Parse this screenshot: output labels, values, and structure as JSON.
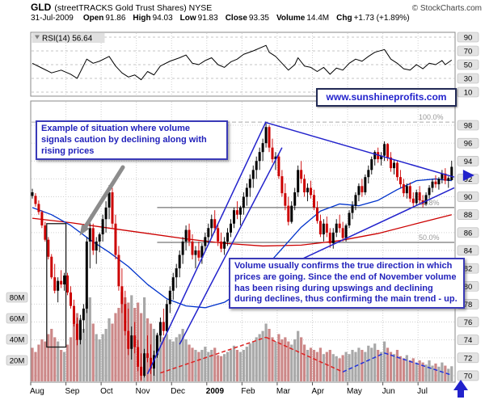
{
  "page": {
    "title_symbol": "GLD",
    "title_rest": "(streetTRACKS Gold Trust Shares) NYSE",
    "copyright": "© StockCharts.com",
    "date": "31-Jul-2009"
  },
  "quote": {
    "open_label": "Open",
    "open": "91.86",
    "high_label": "High",
    "high": "94.03",
    "low_label": "Low",
    "low": "91.83",
    "close_label": "Close",
    "close": "93.35",
    "volume_label": "Volume",
    "volume": "14.4M",
    "chg_label": "Chg",
    "chg": "+1.73 (+1.89%)"
  },
  "annotations": {
    "note1": "Example of situation where volume signals caution by declining along with rising prices",
    "note2": "Volume usually confirms the true direction in which prices are going. Since the end of November volume has been rising during upswings and declining during declines, thus confirming the main trend - up.",
    "watermark": "www.sunshineprofits.com"
  },
  "colors": {
    "annotation_blue": "#2222bb",
    "trend_blue": "#2222cc",
    "ma_red": "#cc0000",
    "ma_blue": "#0033cc",
    "candle_up": "#000000",
    "candle_down": "#cc0000",
    "vol_up": "#a8a8a8",
    "vol_down": "#cc8888",
    "grid": "#d0d0d0",
    "fib": "#999999",
    "vol_trend_red": "#dd2222",
    "vol_trend_blue": "#2233dd"
  },
  "chart_data": {
    "type": "candlestick",
    "title": "GLD daily candlesticks with RSI(14), volume overlay, Fibonacci retracements and trendlines",
    "x_axis": {
      "months": [
        "Aug",
        "Sep",
        "Oct",
        "Nov",
        "Dec",
        "2009",
        "Feb",
        "Mar",
        "Apr",
        "May",
        "Jun",
        "Jul"
      ],
      "bars_per_month": 11
    },
    "price_axis": {
      "min": 70,
      "max": 98,
      "step": 2
    },
    "volume_axis": {
      "ticks_m": [
        80,
        60,
        40,
        20
      ],
      "unit": "M"
    },
    "rsi_panel": {
      "label": "RSI(14) 56.64",
      "ticks": [
        90,
        70,
        50,
        30,
        10
      ],
      "last": 56.64
    },
    "fib_levels": [
      {
        "label": "100.0%",
        "price": 98.35,
        "dashed": true,
        "from_bar": 0
      },
      {
        "label": "61.8%",
        "price": 88.8,
        "dashed": false,
        "from_bar": 39
      },
      {
        "label": "50.0%",
        "price": 84.9,
        "dashed": false,
        "from_bar": 39
      }
    ],
    "candles_ohlc": [
      [
        90.5,
        90.9,
        89.8,
        90.1
      ],
      [
        90.1,
        90.4,
        88.9,
        89.2
      ],
      [
        89.2,
        89.6,
        88.0,
        88.3
      ],
      [
        88.3,
        88.5,
        86.5,
        86.8
      ],
      [
        86.8,
        87.2,
        85.0,
        85.2
      ],
      [
        85.2,
        85.5,
        83.0,
        83.3
      ],
      [
        83.3,
        83.6,
        80.8,
        81.0
      ],
      [
        81.0,
        82.5,
        79.2,
        79.5
      ],
      [
        79.5,
        81.0,
        78.2,
        80.6
      ],
      [
        80.6,
        81.8,
        79.8,
        80.2
      ],
      [
        80.2,
        81.5,
        79.5,
        81.2
      ],
      [
        81.2,
        81.5,
        79.0,
        79.3
      ],
      [
        79.3,
        80.0,
        77.5,
        77.8
      ],
      [
        77.8,
        78.5,
        75.5,
        75.8
      ],
      [
        75.8,
        76.5,
        73.4,
        74.0
      ],
      [
        74.0,
        76.8,
        73.5,
        76.2
      ],
      [
        76.2,
        78.0,
        74.8,
        77.5
      ],
      [
        77.5,
        85.5,
        77.0,
        85.0
      ],
      [
        85.0,
        87.2,
        82.0,
        86.5
      ],
      [
        86.5,
        87.0,
        83.5,
        84.0
      ],
      [
        84.0,
        85.5,
        82.5,
        85.0
      ],
      [
        85.0,
        86.0,
        83.8,
        85.8
      ],
      [
        85.8,
        88.0,
        85.0,
        87.5
      ],
      [
        87.5,
        89.5,
        86.0,
        88.8
      ],
      [
        88.8,
        91.3,
        87.5,
        90.5
      ],
      [
        90.5,
        91.0,
        86.5,
        87.0
      ],
      [
        87.0,
        88.0,
        83.0,
        83.5
      ],
      [
        83.5,
        84.5,
        79.5,
        80.0
      ],
      [
        80.0,
        82.0,
        77.0,
        78.0
      ],
      [
        78.0,
        79.5,
        74.5,
        75.0
      ],
      [
        75.0,
        77.5,
        72.3,
        73.0
      ],
      [
        73.0,
        75.5,
        71.8,
        74.5
      ],
      [
        74.5,
        76.0,
        72.5,
        73.2
      ],
      [
        73.2,
        74.0,
        70.5,
        71.0
      ],
      [
        71.0,
        72.5,
        69.5,
        70.0
      ],
      [
        70.0,
        73.0,
        69.8,
        72.5
      ],
      [
        72.5,
        74.5,
        71.5,
        72.0
      ],
      [
        72.0,
        73.5,
        70.2,
        70.8
      ],
      [
        70.8,
        72.8,
        70.0,
        72.3
      ],
      [
        72.3,
        74.8,
        72.0,
        74.5
      ],
      [
        74.5,
        76.5,
        73.8,
        76.0
      ],
      [
        76.0,
        77.5,
        74.5,
        75.0
      ],
      [
        75.0,
        78.5,
        74.8,
        78.0
      ],
      [
        78.0,
        80.0,
        77.0,
        79.5
      ],
      [
        79.5,
        81.5,
        78.5,
        81.0
      ],
      [
        81.0,
        82.5,
        79.8,
        82.0
      ],
      [
        82.0,
        84.0,
        81.0,
        83.5
      ],
      [
        83.5,
        85.5,
        82.5,
        85.0
      ],
      [
        85.0,
        86.8,
        84.0,
        86.3
      ],
      [
        86.3,
        87.0,
        84.5,
        85.0
      ],
      [
        85.0,
        85.8,
        83.0,
        83.5
      ],
      [
        83.5,
        84.5,
        82.0,
        84.0
      ],
      [
        84.0,
        85.0,
        82.8,
        83.2
      ],
      [
        83.2,
        84.8,
        82.5,
        84.5
      ],
      [
        84.5,
        86.0,
        84.0,
        85.5
      ],
      [
        85.5,
        87.0,
        84.8,
        86.5
      ],
      [
        86.5,
        88.0,
        85.5,
        87.5
      ],
      [
        87.5,
        88.5,
        86.0,
        86.5
      ],
      [
        86.5,
        87.0,
        84.5,
        85.0
      ],
      [
        85.0,
        86.0,
        83.8,
        84.2
      ],
      [
        84.2,
        85.5,
        83.5,
        85.0
      ],
      [
        85.0,
        86.5,
        84.5,
        86.0
      ],
      [
        86.0,
        87.5,
        85.5,
        87.0
      ],
      [
        87.0,
        88.8,
        86.5,
        88.5
      ],
      [
        88.5,
        89.5,
        87.5,
        88.0
      ],
      [
        88.0,
        89.0,
        86.8,
        88.8
      ],
      [
        88.8,
        90.5,
        88.0,
        90.0
      ],
      [
        90.0,
        91.5,
        89.0,
        91.0
      ],
      [
        91.0,
        92.5,
        90.0,
        92.0
      ],
      [
        92.0,
        93.5,
        91.0,
        93.0
      ],
      [
        93.0,
        94.5,
        92.0,
        94.0
      ],
      [
        94.0,
        95.5,
        93.0,
        95.0
      ],
      [
        95.0,
        96.5,
        94.0,
        96.0
      ],
      [
        96.0,
        98.2,
        95.5,
        97.8
      ],
      [
        97.8,
        98.0,
        95.0,
        95.5
      ],
      [
        95.5,
        96.5,
        93.8,
        94.2
      ],
      [
        94.2,
        95.0,
        93.0,
        94.5
      ],
      [
        94.5,
        94.8,
        92.0,
        92.3
      ],
      [
        92.3,
        93.0,
        90.0,
        90.4
      ],
      [
        90.4,
        91.5,
        88.5,
        89.0
      ],
      [
        89.0,
        90.0,
        86.8,
        87.2
      ],
      [
        87.2,
        89.5,
        87.0,
        89.0
      ],
      [
        89.0,
        91.0,
        88.5,
        90.5
      ],
      [
        90.5,
        93.5,
        90.0,
        93.0
      ],
      [
        93.0,
        94.0,
        91.5,
        92.0
      ],
      [
        92.0,
        92.5,
        90.0,
        90.5
      ],
      [
        90.5,
        91.5,
        89.5,
        91.0
      ],
      [
        91.0,
        91.8,
        89.8,
        90.2
      ],
      [
        90.2,
        90.8,
        88.5,
        88.8
      ],
      [
        88.8,
        89.5,
        87.0,
        87.3
      ],
      [
        87.3,
        88.0,
        85.5,
        85.8
      ],
      [
        85.8,
        87.5,
        85.0,
        87.0
      ],
      [
        87.0,
        87.8,
        85.5,
        86.0
      ],
      [
        86.0,
        86.5,
        84.3,
        84.8
      ],
      [
        84.8,
        86.5,
        84.2,
        86.0
      ],
      [
        86.0,
        87.5,
        85.5,
        87.0
      ],
      [
        87.0,
        88.0,
        86.0,
        86.5
      ],
      [
        86.5,
        87.2,
        85.0,
        85.4
      ],
      [
        85.4,
        87.0,
        85.0,
        86.8
      ],
      [
        86.8,
        88.5,
        86.5,
        88.2
      ],
      [
        88.2,
        89.5,
        87.5,
        89.0
      ],
      [
        89.0,
        90.5,
        88.5,
        90.2
      ],
      [
        90.2,
        91.5,
        89.5,
        91.2
      ],
      [
        91.2,
        92.0,
        90.0,
        90.5
      ],
      [
        90.5,
        92.5,
        90.2,
        92.2
      ],
      [
        92.2,
        93.5,
        91.5,
        93.0
      ],
      [
        93.0,
        94.5,
        92.5,
        94.2
      ],
      [
        94.2,
        95.2,
        93.5,
        95.0
      ],
      [
        95.0,
        95.5,
        93.8,
        94.2
      ],
      [
        94.2,
        95.0,
        93.5,
        94.6
      ],
      [
        94.6,
        96.2,
        94.0,
        95.9
      ],
      [
        95.9,
        96.0,
        94.0,
        94.4
      ],
      [
        94.4,
        95.0,
        92.8,
        93.2
      ],
      [
        93.2,
        94.2,
        92.5,
        93.8
      ],
      [
        93.8,
        94.0,
        91.8,
        92.2
      ],
      [
        92.2,
        93.0,
        91.0,
        91.4
      ],
      [
        91.4,
        92.0,
        90.0,
        90.4
      ],
      [
        90.4,
        91.5,
        89.8,
        91.2
      ],
      [
        91.2,
        91.6,
        89.4,
        89.8
      ],
      [
        89.8,
        90.5,
        88.9,
        89.3
      ],
      [
        89.3,
        90.8,
        89.0,
        90.5
      ],
      [
        90.5,
        91.2,
        89.2,
        89.6
      ],
      [
        89.6,
        90.2,
        88.8,
        89.2
      ],
      [
        89.2,
        90.5,
        89.0,
        90.2
      ],
      [
        90.2,
        91.3,
        89.8,
        91.0
      ],
      [
        91.0,
        92.0,
        90.5,
        91.7
      ],
      [
        91.7,
        92.4,
        91.0,
        91.4
      ],
      [
        91.4,
        92.2,
        90.8,
        92.0
      ],
      [
        92.0,
        93.0,
        91.5,
        92.6
      ],
      [
        92.6,
        93.2,
        91.4,
        91.8
      ],
      [
        91.8,
        92.3,
        91.0,
        92.1
      ],
      [
        91.86,
        94.03,
        91.83,
        93.35
      ]
    ],
    "volume_m": [
      32,
      28,
      35,
      40,
      38,
      45,
      50,
      42,
      38,
      30,
      28,
      35,
      42,
      55,
      65,
      60,
      50,
      75,
      80,
      55,
      45,
      40,
      45,
      50,
      60,
      55,
      65,
      70,
      85,
      80,
      75,
      82,
      70,
      75,
      65,
      80,
      60,
      55,
      50,
      45,
      48,
      42,
      45,
      40,
      38,
      42,
      45,
      50,
      40,
      35,
      32,
      30,
      28,
      30,
      33,
      28,
      30,
      32,
      25,
      24,
      26,
      28,
      30,
      34,
      30,
      28,
      30,
      33,
      36,
      38,
      42,
      45,
      48,
      55,
      50,
      42,
      38,
      45,
      40,
      42,
      38,
      35,
      40,
      48,
      42,
      35,
      30,
      32,
      30,
      28,
      32,
      26,
      28,
      30,
      26,
      24,
      22,
      25,
      28,
      26,
      30,
      28,
      32,
      30,
      28,
      34,
      32,
      36,
      30,
      28,
      38,
      32,
      28,
      26,
      30,
      24,
      22,
      25,
      20,
      22,
      18,
      20,
      18,
      16,
      20,
      15,
      17,
      14,
      18,
      15,
      12,
      14.4
    ],
    "rsi_points": [
      [
        0,
        52
      ],
      [
        3,
        45
      ],
      [
        6,
        38
      ],
      [
        9,
        42
      ],
      [
        12,
        36
      ],
      [
        14,
        30
      ],
      [
        17,
        58
      ],
      [
        19,
        52
      ],
      [
        21,
        55
      ],
      [
        24,
        62
      ],
      [
        26,
        48
      ],
      [
        28,
        38
      ],
      [
        30,
        32
      ],
      [
        32,
        35
      ],
      [
        34,
        28
      ],
      [
        36,
        40
      ],
      [
        38,
        35
      ],
      [
        40,
        48
      ],
      [
        43,
        55
      ],
      [
        46,
        60
      ],
      [
        48,
        64
      ],
      [
        50,
        52
      ],
      [
        52,
        50
      ],
      [
        54,
        56
      ],
      [
        56,
        60
      ],
      [
        58,
        50
      ],
      [
        60,
        46
      ],
      [
        62,
        54
      ],
      [
        64,
        58
      ],
      [
        66,
        65
      ],
      [
        69,
        70
      ],
      [
        73,
        78
      ],
      [
        74,
        68
      ],
      [
        76,
        62
      ],
      [
        78,
        52
      ],
      [
        80,
        42
      ],
      [
        82,
        50
      ],
      [
        83,
        60
      ],
      [
        85,
        48
      ],
      [
        87,
        46
      ],
      [
        89,
        40
      ],
      [
        91,
        46
      ],
      [
        93,
        36
      ],
      [
        95,
        45
      ],
      [
        97,
        42
      ],
      [
        99,
        52
      ],
      [
        101,
        58
      ],
      [
        103,
        55
      ],
      [
        105,
        62
      ],
      [
        107,
        68
      ],
      [
        110,
        72
      ],
      [
        112,
        58
      ],
      [
        114,
        52
      ],
      [
        116,
        44
      ],
      [
        118,
        42
      ],
      [
        120,
        50
      ],
      [
        122,
        44
      ],
      [
        124,
        52
      ],
      [
        126,
        50
      ],
      [
        128,
        56
      ],
      [
        129,
        50
      ],
      [
        131,
        56.64
      ]
    ],
    "ma50_points": [
      [
        0,
        88.8
      ],
      [
        6,
        88.0
      ],
      [
        12,
        86.8
      ],
      [
        18,
        85.2
      ],
      [
        24,
        83.8
      ],
      [
        30,
        82.2
      ],
      [
        36,
        80.2
      ],
      [
        42,
        78.6
      ],
      [
        48,
        77.8
      ],
      [
        54,
        77.6
      ],
      [
        60,
        78.2
      ],
      [
        66,
        79.6
      ],
      [
        72,
        81.8
      ],
      [
        78,
        84.2
      ],
      [
        84,
        86.6
      ],
      [
        90,
        88.4
      ],
      [
        96,
        89.2
      ],
      [
        102,
        89.0
      ],
      [
        108,
        89.6
      ],
      [
        114,
        90.8
      ],
      [
        120,
        91.8
      ],
      [
        126,
        92.0
      ],
      [
        131,
        91.8
      ]
    ],
    "ma200_points": [
      [
        0,
        87.6
      ],
      [
        12,
        87.1
      ],
      [
        24,
        86.5
      ],
      [
        36,
        85.9
      ],
      [
        48,
        85.3
      ],
      [
        60,
        84.8
      ],
      [
        72,
        84.5
      ],
      [
        84,
        84.6
      ],
      [
        96,
        85.1
      ],
      [
        108,
        85.9
      ],
      [
        120,
        87.0
      ],
      [
        131,
        88.0
      ]
    ],
    "trendlines": [
      {
        "from": [
          36,
          70.2
        ],
        "to": [
          73,
          98.4
        ]
      },
      {
        "from": [
          46,
          73.5
        ],
        "to": [
          78,
          95.5
        ]
      },
      {
        "from": [
          73,
          98.3
        ],
        "to": [
          131.8,
          92.2
        ]
      },
      {
        "from": [
          78,
          82.0
        ],
        "to": [
          131.8,
          91.0
        ]
      }
    ],
    "volume_trendlines": [
      {
        "from": [
          40,
          8
        ],
        "to": [
          73,
          42
        ],
        "color": "red"
      },
      {
        "from": [
          73,
          42
        ],
        "to": [
          97,
          9
        ],
        "color": "red"
      },
      {
        "from": [
          97,
          9
        ],
        "to": [
          110,
          27
        ],
        "color": "blue"
      },
      {
        "from": [
          110,
          27
        ],
        "to": [
          131,
          6
        ],
        "color": "blue"
      }
    ],
    "price_arrow": {
      "bar": 129,
      "price": 92.4
    },
    "highlight_rect": {
      "from_bar": 4.5,
      "to_bar": 10.5,
      "top_price": 87.0,
      "bottom_price": 73.2
    }
  }
}
